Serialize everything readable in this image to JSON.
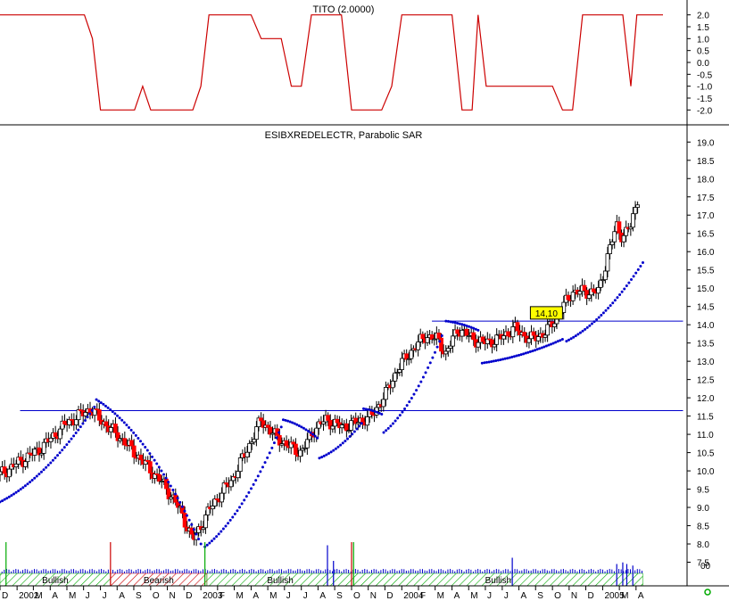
{
  "chart_data": [
    {
      "type": "line",
      "title": "TITO (2.0000)",
      "ylim": [
        -2.25,
        2.25
      ],
      "yticks": [
        2.0,
        1.5,
        1.0,
        0.5,
        0.0,
        -0.5,
        -1.0,
        -1.5,
        -2.0
      ],
      "ytick_labels": [
        "2.0",
        "1.5",
        "1.0",
        "0.5",
        "0.0",
        "-0.5",
        "-1.0",
        "-1.5",
        "-2.0"
      ],
      "series": [
        {
          "color": "#cc0000",
          "points": [
            [
              2002.0,
              2.0
            ],
            [
              2002.42,
              2.0
            ],
            [
              2002.46,
              1.0
            ],
            [
              2002.5,
              -2.0
            ],
            [
              2002.67,
              -2.0
            ],
            [
              2002.71,
              -1.0
            ],
            [
              2002.75,
              -2.0
            ],
            [
              2002.96,
              -2.0
            ],
            [
              2003.0,
              -1.0
            ],
            [
              2003.04,
              2.0
            ],
            [
              2003.25,
              2.0
            ],
            [
              2003.3,
              1.0
            ],
            [
              2003.4,
              1.0
            ],
            [
              2003.45,
              -1.0
            ],
            [
              2003.5,
              -1.0
            ],
            [
              2003.55,
              2.0
            ],
            [
              2003.7,
              2.0
            ],
            [
              2003.75,
              -2.0
            ],
            [
              2003.9,
              -2.0
            ],
            [
              2003.95,
              -1.0
            ],
            [
              2004.0,
              2.0
            ],
            [
              2004.25,
              2.0
            ],
            [
              2004.3,
              -2.0
            ],
            [
              2004.35,
              -2.0
            ],
            [
              2004.38,
              2.0
            ],
            [
              2004.42,
              -1.0
            ],
            [
              2004.75,
              -1.0
            ],
            [
              2004.8,
              -2.0
            ],
            [
              2004.85,
              -2.0
            ],
            [
              2004.9,
              2.0
            ],
            [
              2005.1,
              2.0
            ],
            [
              2005.14,
              -1.0
            ],
            [
              2005.17,
              2.0
            ],
            [
              2005.3,
              2.0
            ]
          ]
        }
      ]
    },
    {
      "type": "candlestick",
      "title": "ESIBXREDELECTR, Parabolic SAR",
      "ylim": [
        7.0,
        19.3
      ],
      "yticks": [
        7.5,
        8.0,
        8.5,
        9.0,
        9.5,
        10.0,
        10.5,
        11.0,
        11.5,
        12.0,
        12.5,
        13.0,
        13.5,
        14.0,
        14.5,
        15.0,
        15.5,
        16.0,
        16.5,
        17.0,
        17.5,
        18.0,
        18.5,
        19.0
      ],
      "ytick_labels": [
        "7.5",
        "8.0",
        "8.5",
        "9.0",
        "9.5",
        "10.0",
        "10.5",
        "11.0",
        "11.5",
        "12.0",
        "12.5",
        "13.0",
        "13.5",
        "14.0",
        "14.5",
        "15.0",
        "15.5",
        "16.0",
        "16.5",
        "17.0",
        "17.5",
        "18.0",
        "18.5",
        "19.0"
      ],
      "price_path": [
        [
          2002.0,
          9.9
        ],
        [
          2002.2,
          10.6
        ],
        [
          2002.33,
          11.3
        ],
        [
          2002.45,
          11.7
        ],
        [
          2002.5,
          11.4
        ],
        [
          2002.62,
          10.8
        ],
        [
          2002.72,
          10.2
        ],
        [
          2002.82,
          9.6
        ],
        [
          2002.9,
          8.9
        ],
        [
          2002.96,
          8.1
        ],
        [
          2003.0,
          8.5
        ],
        [
          2003.06,
          9.1
        ],
        [
          2003.16,
          9.8
        ],
        [
          2003.25,
          10.8
        ],
        [
          2003.3,
          11.4
        ],
        [
          2003.36,
          11.0
        ],
        [
          2003.43,
          10.7
        ],
        [
          2003.5,
          10.5
        ],
        [
          2003.56,
          11.1
        ],
        [
          2003.62,
          11.4
        ],
        [
          2003.7,
          11.2
        ],
        [
          2003.76,
          11.3
        ],
        [
          2003.85,
          11.5
        ],
        [
          2003.92,
          12.1
        ],
        [
          2003.98,
          12.8
        ],
        [
          2004.05,
          13.3
        ],
        [
          2004.12,
          13.7
        ],
        [
          2004.18,
          13.6
        ],
        [
          2004.22,
          13.2
        ],
        [
          2004.28,
          13.9
        ],
        [
          2004.33,
          13.7
        ],
        [
          2004.4,
          13.5
        ],
        [
          2004.48,
          13.6
        ],
        [
          2004.56,
          13.9
        ],
        [
          2004.64,
          13.6
        ],
        [
          2004.72,
          13.8
        ],
        [
          2004.78,
          14.3
        ],
        [
          2004.85,
          14.9
        ],
        [
          2004.92,
          14.9
        ],
        [
          2004.98,
          14.9
        ],
        [
          2005.03,
          16.0
        ],
        [
          2005.07,
          16.7
        ],
        [
          2005.1,
          16.4
        ],
        [
          2005.14,
          16.7
        ],
        [
          2005.18,
          17.6
        ]
      ],
      "sar_segments": [
        {
          "from": 2002.0,
          "to": 2002.47,
          "y0": 9.15,
          "y1": 11.75,
          "curve": "up"
        },
        {
          "from": 2002.48,
          "to": 2003.0,
          "y0": 11.95,
          "y1": 8.0,
          "curve": "down"
        },
        {
          "from": 2003.02,
          "to": 2003.4,
          "y0": 7.92,
          "y1": 11.2,
          "curve": "up"
        },
        {
          "from": 2003.41,
          "to": 2003.58,
          "y0": 11.4,
          "y1": 10.9,
          "curve": "down"
        },
        {
          "from": 2003.59,
          "to": 2003.8,
          "y0": 10.35,
          "y1": 11.3,
          "curve": "up"
        },
        {
          "from": 2003.81,
          "to": 2003.9,
          "y0": 11.7,
          "y1": 11.55,
          "curve": "down"
        },
        {
          "from": 2003.91,
          "to": 2004.2,
          "y0": 11.05,
          "y1": 13.7,
          "curve": "up"
        },
        {
          "from": 2004.22,
          "to": 2004.38,
          "y0": 14.1,
          "y1": 13.85,
          "curve": "down"
        },
        {
          "from": 2004.4,
          "to": 2004.8,
          "y0": 12.95,
          "y1": 13.6,
          "curve": "up"
        },
        {
          "from": 2004.82,
          "to": 2005.2,
          "y0": 13.55,
          "y1": 15.7,
          "curve": "up"
        }
      ],
      "hlines": [
        {
          "y": 11.65,
          "from": 2002.1,
          "to": 2005.4,
          "color": "#0000cc"
        },
        {
          "y": 14.1,
          "from": 2004.15,
          "to": 2005.4,
          "color": "#0000cc"
        }
      ],
      "annotation": {
        "text": "14,10",
        "x": 2004.72,
        "y": 14.3,
        "color": "#ffff00"
      },
      "colors": {
        "up": "#ffffff",
        "down": "#ff0000",
        "sar": "#0000cc",
        "outline": "#000000"
      }
    },
    {
      "type": "bar",
      "title": "",
      "ytick_labels": [
        "00"
      ],
      "spikes": [
        {
          "x": 2002.03,
          "h": 1.0,
          "color": "#00aa00"
        },
        {
          "x": 2002.55,
          "h": 1.0,
          "color": "#cc0000"
        },
        {
          "x": 2003.02,
          "h": 1.0,
          "color": "#00aa00"
        },
        {
          "x": 2003.63,
          "h": 0.9,
          "color": "#0000cc"
        },
        {
          "x": 2003.66,
          "h": 0.4,
          "color": "#0000cc"
        },
        {
          "x": 2003.75,
          "h": 1.0,
          "color": "#cc0000"
        },
        {
          "x": 2003.76,
          "h": 1.0,
          "color": "#00aa00"
        },
        {
          "x": 2004.55,
          "h": 0.5,
          "color": "#0000cc"
        },
        {
          "x": 2005.07,
          "h": 0.3,
          "color": "#0000cc"
        },
        {
          "x": 2005.1,
          "h": 0.35,
          "color": "#0000cc"
        },
        {
          "x": 2005.12,
          "h": 0.3,
          "color": "#0000cc"
        },
        {
          "x": 2005.15,
          "h": 0.25,
          "color": "#0000cc"
        }
      ],
      "bands": [
        {
          "label": "Bullish",
          "from": 2002.0,
          "to": 2002.55,
          "type": "bullish"
        },
        {
          "label": "Bearish",
          "from": 2002.55,
          "to": 2003.03,
          "type": "bearish"
        },
        {
          "label": "Bullish",
          "from": 2003.03,
          "to": 2003.76,
          "type": "bullish"
        },
        {
          "label": "Bullish",
          "from": 2003.76,
          "to": 2005.2,
          "type": "bullish"
        }
      ],
      "colors": {
        "bullish": "#00aa00",
        "bearish": "#cc0000",
        "volume": "#0000cc"
      }
    }
  ],
  "x_axis": {
    "range": [
      2002.0,
      2005.42
    ],
    "labels": [
      {
        "x": 2002.0,
        "text": "D"
      },
      {
        "x": 2002.085,
        "text": "2002"
      },
      {
        "x": 2002.166,
        "text": "M"
      },
      {
        "x": 2002.25,
        "text": "A"
      },
      {
        "x": 2002.333,
        "text": "M"
      },
      {
        "x": 2002.416,
        "text": "J"
      },
      {
        "x": 2002.5,
        "text": "J"
      },
      {
        "x": 2002.583,
        "text": "A"
      },
      {
        "x": 2002.666,
        "text": "S"
      },
      {
        "x": 2002.75,
        "text": "O"
      },
      {
        "x": 2002.833,
        "text": "N"
      },
      {
        "x": 2002.916,
        "text": "D"
      },
      {
        "x": 2003.0,
        "text": "2003"
      },
      {
        "x": 2003.083,
        "text": "F"
      },
      {
        "x": 2003.166,
        "text": "M"
      },
      {
        "x": 2003.25,
        "text": "A"
      },
      {
        "x": 2003.333,
        "text": "M"
      },
      {
        "x": 2003.416,
        "text": "J"
      },
      {
        "x": 2003.5,
        "text": "J"
      },
      {
        "x": 2003.583,
        "text": "A"
      },
      {
        "x": 2003.666,
        "text": "S"
      },
      {
        "x": 2003.75,
        "text": "O"
      },
      {
        "x": 2003.833,
        "text": "N"
      },
      {
        "x": 2003.916,
        "text": "D"
      },
      {
        "x": 2004.0,
        "text": "2004"
      },
      {
        "x": 2004.083,
        "text": "F"
      },
      {
        "x": 2004.166,
        "text": "M"
      },
      {
        "x": 2004.25,
        "text": "A"
      },
      {
        "x": 2004.333,
        "text": "M"
      },
      {
        "x": 2004.416,
        "text": "J"
      },
      {
        "x": 2004.5,
        "text": "J"
      },
      {
        "x": 2004.583,
        "text": "A"
      },
      {
        "x": 2004.666,
        "text": "S"
      },
      {
        "x": 2004.75,
        "text": "O"
      },
      {
        "x": 2004.833,
        "text": "N"
      },
      {
        "x": 2004.916,
        "text": "D"
      },
      {
        "x": 2005.0,
        "text": "2005"
      },
      {
        "x": 2005.083,
        "text": "M"
      },
      {
        "x": 2005.166,
        "text": "A"
      }
    ]
  }
}
